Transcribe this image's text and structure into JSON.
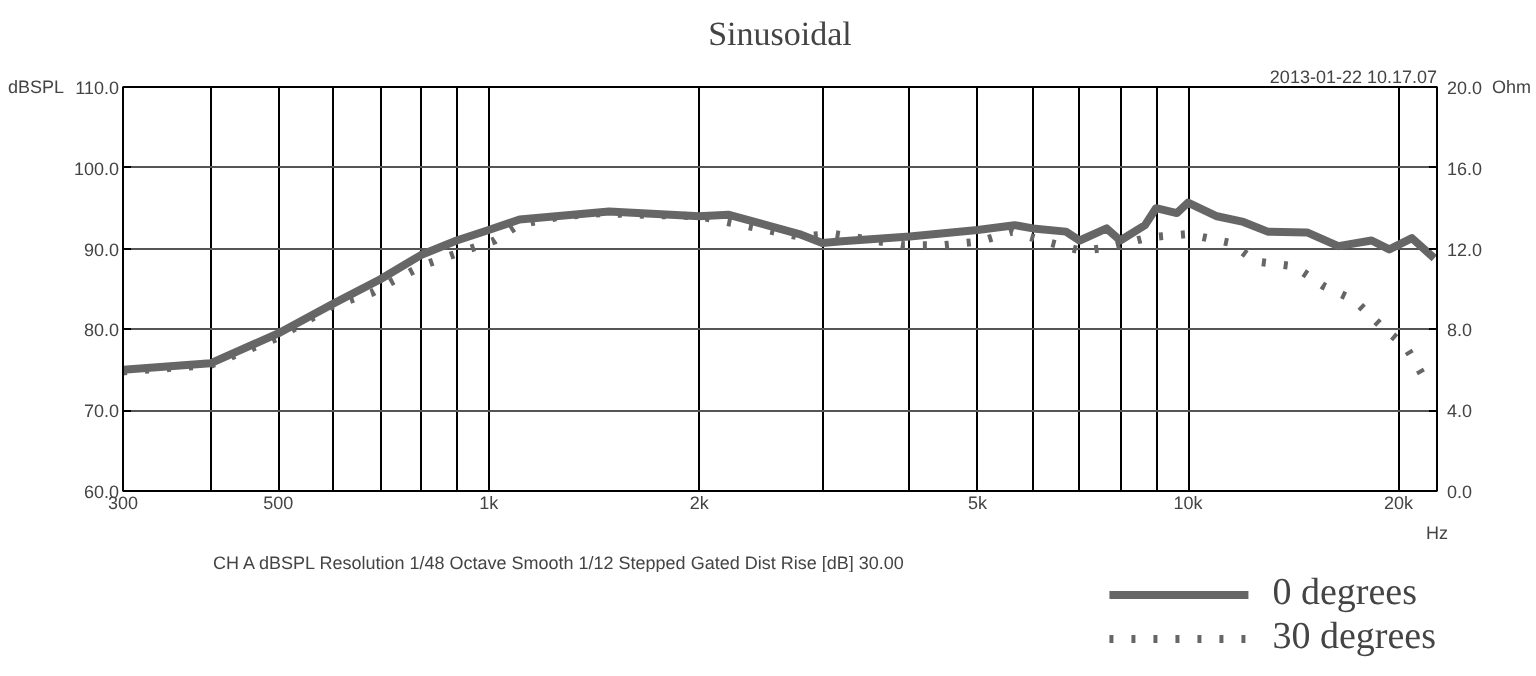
{
  "chart_data": {
    "type": "line",
    "title": "Sinusoidal",
    "xlabel": "Hz",
    "ylabel": "dBSPL",
    "y2label": "Ohm",
    "log": "x",
    "grid": true,
    "legend": "bottom right",
    "marker": "none",
    "annotations": [
      "2013-01-22 10.17.07",
      "CH A   dBSPL   Resolution 1/48 Octave   Smooth 1/12   Stepped   Gated   Dist Rise [dB] 30.00"
    ],
    "xlim": [
      300,
      22700
    ],
    "ylim": [
      60,
      110
    ],
    "y2lim": [
      0,
      20
    ],
    "xticks": [
      {
        "value": 300,
        "label": "300"
      },
      {
        "value": 400,
        "label": null
      },
      {
        "value": 500,
        "label": "500"
      },
      {
        "value": 600,
        "label": null
      },
      {
        "value": 700,
        "label": null
      },
      {
        "value": 800,
        "label": null
      },
      {
        "value": 900,
        "label": null
      },
      {
        "value": 1000,
        "label": "1k"
      },
      {
        "value": 2000,
        "label": "2k"
      },
      {
        "value": 3000,
        "label": null
      },
      {
        "value": 4000,
        "label": null
      },
      {
        "value": 5000,
        "label": "5k"
      },
      {
        "value": 6000,
        "label": null
      },
      {
        "value": 7000,
        "label": null
      },
      {
        "value": 8000,
        "label": null
      },
      {
        "value": 9000,
        "label": null
      },
      {
        "value": 10000,
        "label": "10k"
      },
      {
        "value": 20000,
        "label": "20k"
      }
    ],
    "yticks": [
      {
        "value": 60,
        "label": "60.0"
      },
      {
        "value": 70,
        "label": "70.0"
      },
      {
        "value": 80,
        "label": "80.0"
      },
      {
        "value": 90,
        "label": "90.0"
      },
      {
        "value": 100,
        "label": "100.0"
      },
      {
        "value": 110,
        "label": "110.0"
      }
    ],
    "y2ticks": [
      {
        "value": 0,
        "label": "0.0"
      },
      {
        "value": 4,
        "label": "4.0"
      },
      {
        "value": 8,
        "label": "8.0"
      },
      {
        "value": 12,
        "label": "12.0"
      },
      {
        "value": 16,
        "label": "16.0"
      },
      {
        "value": 20,
        "label": "20.0"
      }
    ],
    "series": [
      {
        "name": "0 degrees",
        "color": "#666666",
        "line_style": "solid",
        "x": [
          300,
          400,
          500,
          600,
          700,
          800,
          900,
          1000,
          1107,
          1486,
          2000,
          2200,
          2780,
          3000,
          3200,
          4000,
          5000,
          5650,
          6000,
          6690,
          7000,
          7650,
          8000,
          8680,
          9000,
          9640,
          10000,
          11000,
          12000,
          13000,
          14800,
          16400,
          18300,
          19400,
          20900,
          22500
        ],
        "values": [
          75.0,
          75.8,
          79.5,
          83.2,
          86.2,
          89.2,
          91.0,
          92.3,
          93.6,
          94.6,
          94.0,
          94.2,
          91.8,
          90.7,
          90.9,
          91.5,
          92.3,
          92.9,
          92.5,
          92.1,
          91.0,
          92.5,
          91.0,
          92.9,
          95.0,
          94.4,
          95.7,
          94.0,
          93.3,
          92.1,
          92.0,
          90.3,
          91.0,
          89.9,
          91.3,
          88.8
        ]
      },
      {
        "name": "30 degrees",
        "color": "#666666",
        "line_style": "dotted",
        "x": [
          300,
          400,
          500,
          600,
          680,
          730,
          810,
          900,
          1020,
          1107,
          1270,
          1450,
          1660,
          2000,
          2780,
          3120,
          3930,
          4450,
          5050,
          5600,
          6300,
          7050,
          7750,
          8800,
          10000,
          11500,
          12500,
          14200,
          15600,
          17300,
          18800,
          20500,
          21800
        ],
        "values": [
          74.8,
          75.6,
          79.0,
          83.0,
          84.5,
          86.0,
          88.0,
          89.4,
          91.0,
          93.0,
          94.0,
          94.4,
          94.2,
          94.0,
          91.5,
          91.8,
          90.4,
          90.4,
          90.9,
          92.1,
          90.8,
          89.7,
          90.2,
          91.4,
          91.8,
          90.7,
          88.4,
          87.8,
          85.4,
          83.6,
          80.6,
          77.8,
          73.9
        ]
      }
    ]
  }
}
